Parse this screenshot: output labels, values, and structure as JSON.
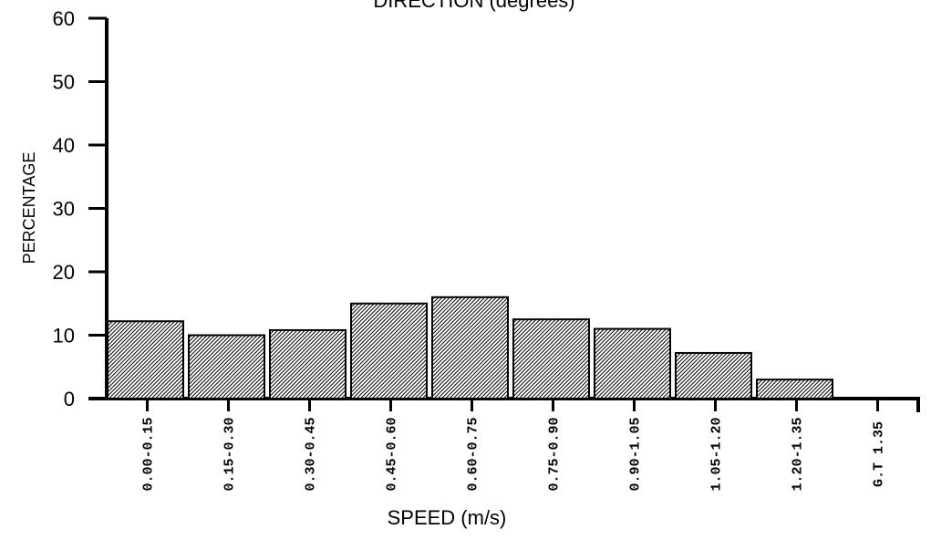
{
  "chart_data": {
    "type": "bar",
    "title": "DIRECTION  (degrees)",
    "xlabel": "SPEED  (m/s)",
    "ylabel": "PERCENTAGE",
    "ylim": [
      0,
      60
    ],
    "yticks": [
      "0",
      "10",
      "20",
      "30",
      "40",
      "50",
      "60"
    ],
    "categories": [
      "0.00-0.15",
      "0.15-0.30",
      "0.30-0.45",
      "0.45-0.60",
      "0.60-0.75",
      "0.75-0.90",
      "0.90-1.05",
      "1.05-1.20",
      "1.20-1.35",
      "G.T  1.35"
    ],
    "values": [
      12.2,
      10.0,
      10.8,
      15.0,
      16.0,
      12.5,
      11.0,
      7.2,
      3.0,
      0
    ],
    "bar_pattern": "diagonal-hatch",
    "bar_color": "#000000",
    "grid": false
  }
}
